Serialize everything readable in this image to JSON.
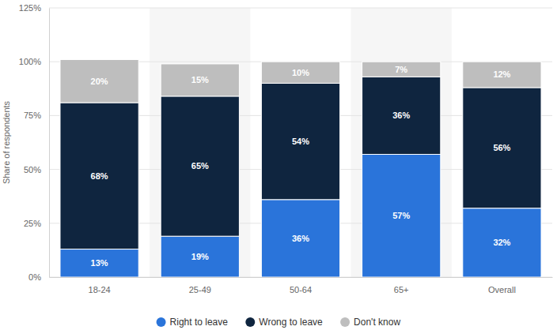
{
  "chart_data": {
    "type": "bar",
    "stacked": true,
    "orientation": "vertical",
    "y_label": "Share of respondents",
    "categories": [
      "18-24",
      "25-49",
      "50-64",
      "65+",
      "Overall"
    ],
    "series": [
      {
        "name": "Right to leave",
        "color": "#2a74da",
        "values": [
          13,
          19,
          36,
          57,
          32
        ],
        "value_labels": [
          "13%",
          "19%",
          "36%",
          "57%",
          "32%"
        ]
      },
      {
        "name": "Wrong to leave",
        "color": "#0f253f",
        "values": [
          68,
          65,
          54,
          36,
          56
        ],
        "value_labels": [
          "68%",
          "65%",
          "54%",
          "36%",
          "56%"
        ]
      },
      {
        "name": "Don't know",
        "color": "#bebebe",
        "values": [
          20,
          15,
          10,
          7,
          12
        ],
        "value_labels": [
          "20%",
          "15%",
          "10%",
          "7%",
          "12%"
        ]
      }
    ],
    "ylim": [
      0,
      125
    ],
    "yticks": [
      {
        "value": 0,
        "label": "0%"
      },
      {
        "value": 25,
        "label": "25%"
      },
      {
        "value": 50,
        "label": "50%"
      },
      {
        "value": 75,
        "label": "75%"
      },
      {
        "value": 100,
        "label": "100%"
      },
      {
        "value": 125,
        "label": "125%"
      }
    ],
    "grid": true,
    "data_labels": true,
    "legend": "bottom"
  }
}
